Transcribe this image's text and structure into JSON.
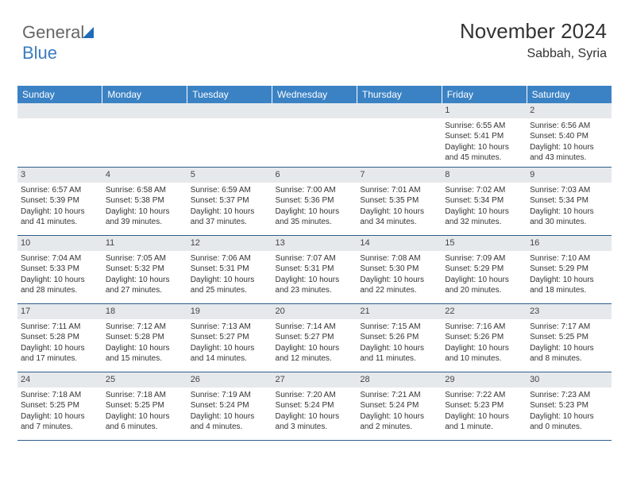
{
  "logo": {
    "part1": "General",
    "part2": "Blue"
  },
  "title": "November 2024",
  "location": "Sabbah, Syria",
  "dayHeaders": [
    "Sunday",
    "Monday",
    "Tuesday",
    "Wednesday",
    "Thursday",
    "Friday",
    "Saturday"
  ],
  "colors": {
    "header_bg": "#3b82c4",
    "header_text": "#ffffff",
    "daynum_bg": "#e6e9ec",
    "row_border": "#2f5d8a",
    "logo_blue": "#3b7bbf"
  },
  "weeks": [
    [
      null,
      null,
      null,
      null,
      null,
      {
        "n": "1",
        "sunrise": "Sunrise: 6:55 AM",
        "sunset": "Sunset: 5:41 PM",
        "daylight": "Daylight: 10 hours and 45 minutes."
      },
      {
        "n": "2",
        "sunrise": "Sunrise: 6:56 AM",
        "sunset": "Sunset: 5:40 PM",
        "daylight": "Daylight: 10 hours and 43 minutes."
      }
    ],
    [
      {
        "n": "3",
        "sunrise": "Sunrise: 6:57 AM",
        "sunset": "Sunset: 5:39 PM",
        "daylight": "Daylight: 10 hours and 41 minutes."
      },
      {
        "n": "4",
        "sunrise": "Sunrise: 6:58 AM",
        "sunset": "Sunset: 5:38 PM",
        "daylight": "Daylight: 10 hours and 39 minutes."
      },
      {
        "n": "5",
        "sunrise": "Sunrise: 6:59 AM",
        "sunset": "Sunset: 5:37 PM",
        "daylight": "Daylight: 10 hours and 37 minutes."
      },
      {
        "n": "6",
        "sunrise": "Sunrise: 7:00 AM",
        "sunset": "Sunset: 5:36 PM",
        "daylight": "Daylight: 10 hours and 35 minutes."
      },
      {
        "n": "7",
        "sunrise": "Sunrise: 7:01 AM",
        "sunset": "Sunset: 5:35 PM",
        "daylight": "Daylight: 10 hours and 34 minutes."
      },
      {
        "n": "8",
        "sunrise": "Sunrise: 7:02 AM",
        "sunset": "Sunset: 5:34 PM",
        "daylight": "Daylight: 10 hours and 32 minutes."
      },
      {
        "n": "9",
        "sunrise": "Sunrise: 7:03 AM",
        "sunset": "Sunset: 5:34 PM",
        "daylight": "Daylight: 10 hours and 30 minutes."
      }
    ],
    [
      {
        "n": "10",
        "sunrise": "Sunrise: 7:04 AM",
        "sunset": "Sunset: 5:33 PM",
        "daylight": "Daylight: 10 hours and 28 minutes."
      },
      {
        "n": "11",
        "sunrise": "Sunrise: 7:05 AM",
        "sunset": "Sunset: 5:32 PM",
        "daylight": "Daylight: 10 hours and 27 minutes."
      },
      {
        "n": "12",
        "sunrise": "Sunrise: 7:06 AM",
        "sunset": "Sunset: 5:31 PM",
        "daylight": "Daylight: 10 hours and 25 minutes."
      },
      {
        "n": "13",
        "sunrise": "Sunrise: 7:07 AM",
        "sunset": "Sunset: 5:31 PM",
        "daylight": "Daylight: 10 hours and 23 minutes."
      },
      {
        "n": "14",
        "sunrise": "Sunrise: 7:08 AM",
        "sunset": "Sunset: 5:30 PM",
        "daylight": "Daylight: 10 hours and 22 minutes."
      },
      {
        "n": "15",
        "sunrise": "Sunrise: 7:09 AM",
        "sunset": "Sunset: 5:29 PM",
        "daylight": "Daylight: 10 hours and 20 minutes."
      },
      {
        "n": "16",
        "sunrise": "Sunrise: 7:10 AM",
        "sunset": "Sunset: 5:29 PM",
        "daylight": "Daylight: 10 hours and 18 minutes."
      }
    ],
    [
      {
        "n": "17",
        "sunrise": "Sunrise: 7:11 AM",
        "sunset": "Sunset: 5:28 PM",
        "daylight": "Daylight: 10 hours and 17 minutes."
      },
      {
        "n": "18",
        "sunrise": "Sunrise: 7:12 AM",
        "sunset": "Sunset: 5:28 PM",
        "daylight": "Daylight: 10 hours and 15 minutes."
      },
      {
        "n": "19",
        "sunrise": "Sunrise: 7:13 AM",
        "sunset": "Sunset: 5:27 PM",
        "daylight": "Daylight: 10 hours and 14 minutes."
      },
      {
        "n": "20",
        "sunrise": "Sunrise: 7:14 AM",
        "sunset": "Sunset: 5:27 PM",
        "daylight": "Daylight: 10 hours and 12 minutes."
      },
      {
        "n": "21",
        "sunrise": "Sunrise: 7:15 AM",
        "sunset": "Sunset: 5:26 PM",
        "daylight": "Daylight: 10 hours and 11 minutes."
      },
      {
        "n": "22",
        "sunrise": "Sunrise: 7:16 AM",
        "sunset": "Sunset: 5:26 PM",
        "daylight": "Daylight: 10 hours and 10 minutes."
      },
      {
        "n": "23",
        "sunrise": "Sunrise: 7:17 AM",
        "sunset": "Sunset: 5:25 PM",
        "daylight": "Daylight: 10 hours and 8 minutes."
      }
    ],
    [
      {
        "n": "24",
        "sunrise": "Sunrise: 7:18 AM",
        "sunset": "Sunset: 5:25 PM",
        "daylight": "Daylight: 10 hours and 7 minutes."
      },
      {
        "n": "25",
        "sunrise": "Sunrise: 7:18 AM",
        "sunset": "Sunset: 5:25 PM",
        "daylight": "Daylight: 10 hours and 6 minutes."
      },
      {
        "n": "26",
        "sunrise": "Sunrise: 7:19 AM",
        "sunset": "Sunset: 5:24 PM",
        "daylight": "Daylight: 10 hours and 4 minutes."
      },
      {
        "n": "27",
        "sunrise": "Sunrise: 7:20 AM",
        "sunset": "Sunset: 5:24 PM",
        "daylight": "Daylight: 10 hours and 3 minutes."
      },
      {
        "n": "28",
        "sunrise": "Sunrise: 7:21 AM",
        "sunset": "Sunset: 5:24 PM",
        "daylight": "Daylight: 10 hours and 2 minutes."
      },
      {
        "n": "29",
        "sunrise": "Sunrise: 7:22 AM",
        "sunset": "Sunset: 5:23 PM",
        "daylight": "Daylight: 10 hours and 1 minute."
      },
      {
        "n": "30",
        "sunrise": "Sunrise: 7:23 AM",
        "sunset": "Sunset: 5:23 PM",
        "daylight": "Daylight: 10 hours and 0 minutes."
      }
    ]
  ]
}
